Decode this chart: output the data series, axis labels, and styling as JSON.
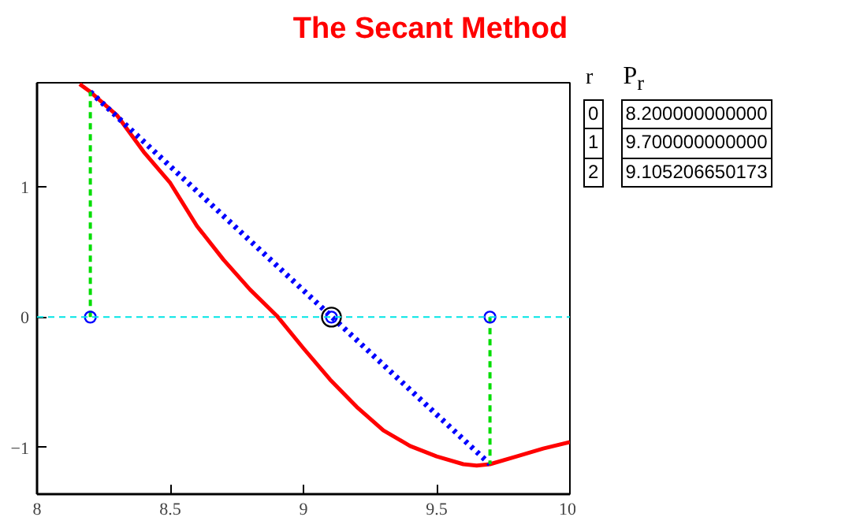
{
  "chart_data": {
    "type": "line",
    "title": "The Secant Method",
    "xlim": [
      8,
      10
    ],
    "ylim": [
      -1.36,
      1.8
    ],
    "xticks": [
      8,
      8.5,
      9,
      9.5,
      10
    ],
    "yticks": [
      -1,
      0,
      1
    ],
    "grid": false,
    "series": [
      {
        "color": "#ff0000",
        "x": [
          8.16,
          8.2,
          8.3,
          8.4,
          8.5,
          8.6,
          8.7,
          8.8,
          8.9,
          9.0,
          9.1,
          9.2,
          9.3,
          9.4,
          9.5,
          9.6,
          9.65,
          9.7,
          9.8,
          9.9,
          10
        ],
        "values": [
          1.79,
          1.73,
          1.55,
          1.27,
          1.03,
          0.7,
          0.44,
          0.21,
          0.01,
          -0.24,
          -0.48,
          -0.69,
          -0.87,
          -0.99,
          -1.07,
          -1.13,
          -1.14,
          -1.13,
          -1.07,
          -1.01,
          -0.96
        ],
        "line_style": "solid"
      },
      {
        "color": "#0000ff",
        "x": [
          8.2,
          9.7
        ],
        "values": [
          1.73,
          -1.13
        ],
        "line_style": "dotted"
      },
      {
        "color": "#00dd00",
        "x": [
          8.2,
          8.2
        ],
        "values": [
          0,
          1.73
        ],
        "line_style": "dashed"
      },
      {
        "color": "#00dd00",
        "x": [
          9.7,
          9.7
        ],
        "values": [
          0,
          -1.13
        ],
        "line_style": "dashed"
      },
      {
        "type": "scatter",
        "color": "#0000ff",
        "x": [
          8.2,
          9.7,
          9.105
        ],
        "values": [
          0,
          0,
          0
        ],
        "marker": "circle"
      },
      {
        "type": "scatter",
        "color": "#000000",
        "x": [
          9.105
        ],
        "values": [
          0
        ],
        "marker": "circle"
      }
    ],
    "ref_lines": [
      {
        "axis": "y",
        "value": 0,
        "color": "#00e5e5",
        "line_style": "dashed"
      }
    ],
    "annotations": [
      "r",
      "P$_{r}$",
      "0",
      "8.200000000000",
      "1",
      "9.700000000000",
      "2",
      "9.105206650173"
    ]
  }
}
